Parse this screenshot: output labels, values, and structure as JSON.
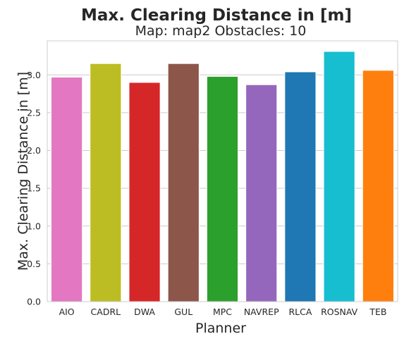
{
  "chart_data": {
    "type": "bar",
    "title": "Max. Clearing Distance in [m]",
    "subtitle": "Map: map2 Obstacles: 10",
    "xlabel": "Planner",
    "ylabel": "Max. Clearing Distance in [m]",
    "ylim": [
      0,
      3.45
    ],
    "yticks": [
      0.0,
      0.5,
      1.0,
      1.5,
      2.0,
      2.5,
      3.0
    ],
    "ytick_labels": [
      "0.0",
      "0.5",
      "1.0",
      "1.5",
      "2.0",
      "2.5",
      "3.0"
    ],
    "grid": true,
    "categories": [
      "AIO",
      "CADRL",
      "DWA",
      "GUL",
      "MPC",
      "NAVREP",
      "RLCA",
      "ROSNAV",
      "TEB"
    ],
    "values": [
      2.97,
      3.15,
      2.9,
      3.15,
      2.98,
      2.87,
      3.04,
      3.31,
      3.06
    ],
    "colors": [
      "#e377c2",
      "#bcbd22",
      "#d62728",
      "#8c564b",
      "#2ca02c",
      "#9467bd",
      "#1f77b4",
      "#17becf",
      "#ff7f0e"
    ]
  }
}
